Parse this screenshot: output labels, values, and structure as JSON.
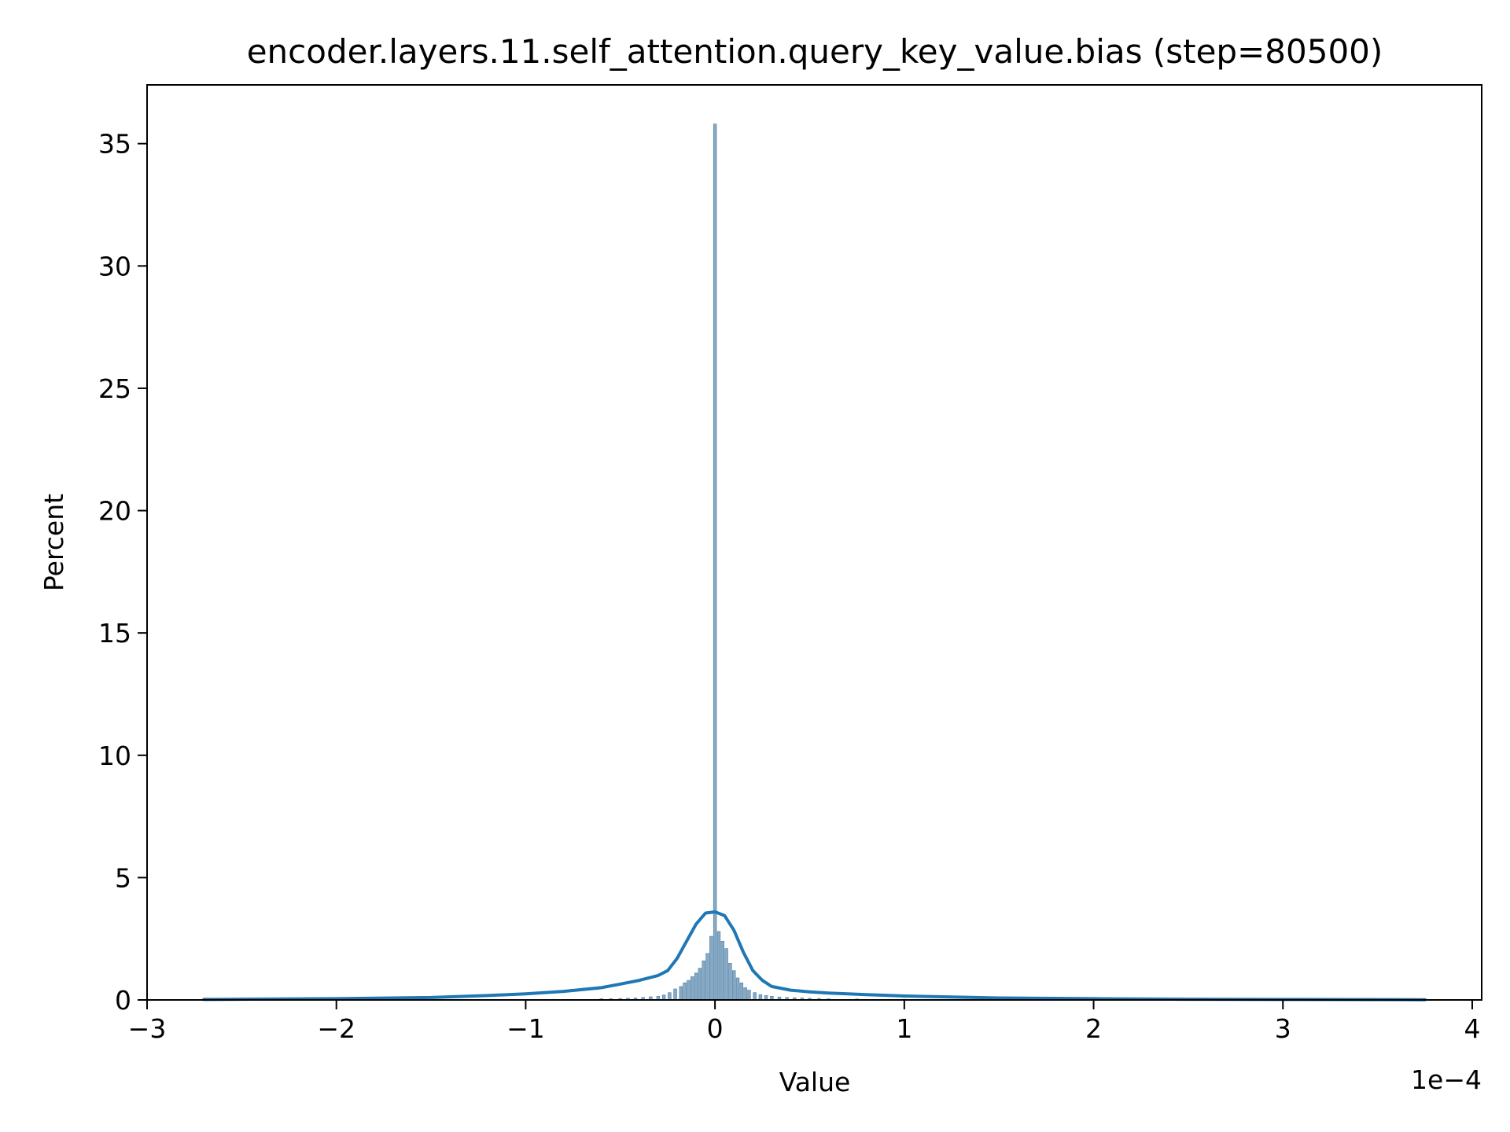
{
  "chart_data": {
    "type": "histogram",
    "title": "encoder.layers.11.self_attention.query_key_value.bias (step=80500)",
    "xlabel": "Value",
    "ylabel": "Percent",
    "x_offset_label": "1e−4",
    "xlim": [
      -3.0,
      4.05
    ],
    "ylim": [
      0,
      37.4
    ],
    "x_ticks": [
      -3,
      -2,
      -1,
      0,
      1,
      2,
      3,
      4
    ],
    "x_tick_labels": [
      "−3",
      "−2",
      "−1",
      "0",
      "1",
      "2",
      "3",
      "4"
    ],
    "y_ticks": [
      0,
      5,
      10,
      15,
      20,
      25,
      30,
      35
    ],
    "y_tick_labels": [
      "0",
      "5",
      "10",
      "15",
      "20",
      "25",
      "30",
      "35"
    ],
    "grid": false,
    "legend": false,
    "colors": {
      "bar_fill": "#86a9c4",
      "bar_edge": "#4f7fa6",
      "kde_line": "#1f77b4",
      "axes": "#000000"
    },
    "bins": [
      {
        "x": -0.6,
        "y": 0.05
      },
      {
        "x": -0.55,
        "y": 0.05
      },
      {
        "x": -0.5,
        "y": 0.06
      },
      {
        "x": -0.46,
        "y": 0.07
      },
      {
        "x": -0.42,
        "y": 0.08
      },
      {
        "x": -0.38,
        "y": 0.1
      },
      {
        "x": -0.34,
        "y": 0.13
      },
      {
        "x": -0.3,
        "y": 0.15
      },
      {
        "x": -0.27,
        "y": 0.2
      },
      {
        "x": -0.24,
        "y": 0.3
      },
      {
        "x": -0.21,
        "y": 0.45
      },
      {
        "x": -0.18,
        "y": 0.55
      },
      {
        "x": -0.16,
        "y": 0.7
      },
      {
        "x": -0.14,
        "y": 0.8
      },
      {
        "x": -0.12,
        "y": 0.95
      },
      {
        "x": -0.1,
        "y": 1.1
      },
      {
        "x": -0.08,
        "y": 1.3
      },
      {
        "x": -0.06,
        "y": 1.6
      },
      {
        "x": -0.04,
        "y": 1.9
      },
      {
        "x": -0.02,
        "y": 2.6
      },
      {
        "x": 0.0,
        "y": 35.8
      },
      {
        "x": 0.02,
        "y": 2.8
      },
      {
        "x": 0.04,
        "y": 2.4
      },
      {
        "x": 0.06,
        "y": 2.1
      },
      {
        "x": 0.08,
        "y": 1.5
      },
      {
        "x": 0.1,
        "y": 1.2
      },
      {
        "x": 0.12,
        "y": 0.9
      },
      {
        "x": 0.14,
        "y": 0.7
      },
      {
        "x": 0.16,
        "y": 0.5
      },
      {
        "x": 0.18,
        "y": 0.4
      },
      {
        "x": 0.21,
        "y": 0.3
      },
      {
        "x": 0.24,
        "y": 0.22
      },
      {
        "x": 0.27,
        "y": 0.18
      },
      {
        "x": 0.3,
        "y": 0.15
      },
      {
        "x": 0.34,
        "y": 0.12
      },
      {
        "x": 0.38,
        "y": 0.1
      },
      {
        "x": 0.42,
        "y": 0.09
      },
      {
        "x": 0.46,
        "y": 0.08
      },
      {
        "x": 0.5,
        "y": 0.07
      },
      {
        "x": 0.55,
        "y": 0.06
      },
      {
        "x": 0.6,
        "y": 0.05
      },
      {
        "x": 0.75,
        "y": 0.04
      },
      {
        "x": 1.0,
        "y": 0.03
      }
    ],
    "bin_width": 0.016,
    "kde": {
      "x": [
        -2.7,
        -2.0,
        -1.5,
        -1.2,
        -1.0,
        -0.8,
        -0.6,
        -0.5,
        -0.4,
        -0.3,
        -0.25,
        -0.2,
        -0.15,
        -0.1,
        -0.05,
        0.0,
        0.05,
        0.1,
        0.15,
        0.2,
        0.25,
        0.3,
        0.4,
        0.5,
        0.6,
        0.8,
        1.0,
        1.5,
        2.0,
        2.5,
        3.0,
        3.75
      ],
      "y": [
        0.02,
        0.05,
        0.1,
        0.18,
        0.25,
        0.35,
        0.5,
        0.65,
        0.8,
        1.0,
        1.2,
        1.7,
        2.4,
        3.1,
        3.55,
        3.6,
        3.45,
        2.85,
        1.95,
        1.2,
        0.8,
        0.55,
        0.4,
        0.33,
        0.28,
        0.22,
        0.16,
        0.08,
        0.05,
        0.03,
        0.02,
        0.01
      ]
    }
  }
}
